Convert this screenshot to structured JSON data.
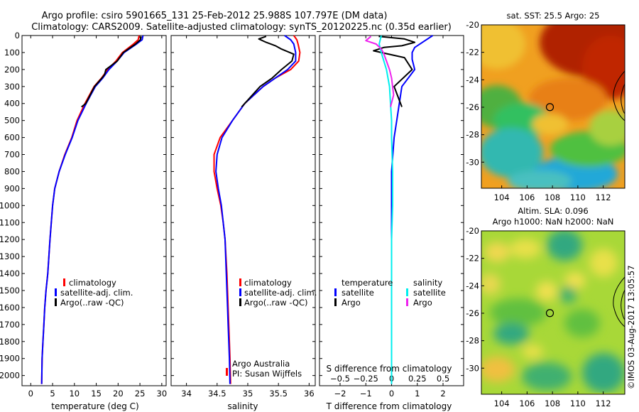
{
  "title_line1": "Argo profile: csiro 5901665_131 25-Feb-2012 25.988S 107.797E (DM data)",
  "title_line2": "Climatology: CARS2009. Satellite-adjusted climatology: synTS_20120225.nc (0.35d earlier)",
  "side_label": "©IMOS 03-Aug-2017 13:05:57",
  "colors": {
    "red": "#ff0000",
    "blue": "#0000ff",
    "black": "#000000",
    "cyan": "#00eeee",
    "magenta": "#ee22ee"
  },
  "chart_data": [
    {
      "type": "line",
      "xlabel": "temperature (deg C)",
      "xlim": [
        -2,
        31
      ],
      "xticks": [
        0,
        5,
        10,
        15,
        20,
        25,
        30
      ],
      "xtick_labels": [
        "0",
        "5",
        "10",
        "15",
        "20",
        "25",
        "30"
      ],
      "ylim": [
        0,
        2060
      ],
      "yticks": [
        0,
        100,
        200,
        300,
        400,
        500,
        600,
        700,
        800,
        900,
        1000,
        1100,
        1200,
        1300,
        1400,
        1500,
        1600,
        1700,
        1800,
        1900,
        2000
      ],
      "ytick_labels": [
        "0",
        "100",
        "200",
        "300",
        "400",
        "500",
        "600",
        "700",
        "800",
        "900",
        "1000",
        "1100",
        "1200",
        "1300",
        "1400",
        "1500",
        "1600",
        "1700",
        "1800",
        "1900",
        "2000"
      ],
      "legend": [
        "climatology",
        "satellite-adj. clim.",
        "Argo(..raw -QC)"
      ],
      "series": [
        {
          "name": "climatology",
          "color": "red",
          "x": [
            24.8,
            24.6,
            23.5,
            21.0,
            19.5,
            17.6,
            16.2,
            14.5,
            12.4,
            10.6,
            9.4,
            7.8,
            6.5,
            5.5,
            5.0,
            4.4,
            3.9,
            3.5,
            3.2,
            3.0,
            2.8,
            2.6,
            2.5
          ],
          "y": [
            0,
            25,
            50,
            100,
            150,
            200,
            250,
            300,
            400,
            500,
            600,
            700,
            800,
            900,
            1000,
            1200,
            1400,
            1500,
            1600,
            1700,
            1800,
            1900,
            2050
          ]
        },
        {
          "name": "satellite-adj. clim.",
          "color": "blue",
          "x": [
            25.7,
            25.5,
            24.2,
            21.4,
            19.8,
            17.9,
            16.5,
            14.8,
            12.7,
            10.8,
            9.5,
            7.9,
            6.5,
            5.5,
            5.0,
            4.4,
            3.9,
            3.5,
            3.2,
            3.0,
            2.8,
            2.6,
            2.5
          ],
          "y": [
            0,
            25,
            50,
            100,
            150,
            200,
            250,
            300,
            400,
            500,
            600,
            700,
            800,
            900,
            1000,
            1200,
            1400,
            1500,
            1600,
            1700,
            1800,
            1900,
            2050
          ]
        },
        {
          "name": "Argo(..raw -QC)",
          "color": "black",
          "x": [
            25.3,
            25.1,
            24.0,
            21.2,
            19.8,
            17.2,
            16.9,
            16.3,
            14.6,
            12.6,
            11.6
          ],
          "y": [
            5,
            25,
            50,
            100,
            150,
            200,
            230,
            250,
            300,
            400,
            420
          ]
        }
      ]
    },
    {
      "type": "line",
      "xlabel": "salinity",
      "xlim": [
        33.75,
        36.1
      ],
      "xticks": [
        34,
        34.5,
        35,
        35.5,
        36
      ],
      "xtick_labels": [
        "34",
        "34.5",
        "35",
        "35.5",
        "36"
      ],
      "ylim": [
        0,
        2060
      ],
      "legend": [
        "climatology",
        "satellite-adj. clim.",
        "Argo(..raw -QC)"
      ],
      "note1": "Argo Australia",
      "note2": "PI: Susan Wijffels",
      "series": [
        {
          "name": "climatology",
          "color": "red",
          "x": [
            35.75,
            35.8,
            35.82,
            35.85,
            35.83,
            35.7,
            35.45,
            35.25,
            34.95,
            34.75,
            34.55,
            34.45,
            34.45,
            34.5,
            34.56,
            34.6,
            34.63,
            34.66,
            34.68,
            34.69,
            34.7,
            34.71,
            34.72
          ],
          "y": [
            0,
            25,
            50,
            100,
            150,
            200,
            250,
            300,
            400,
            500,
            600,
            700,
            800,
            900,
            1000,
            1100,
            1200,
            1400,
            1600,
            1700,
            1800,
            1900,
            2050
          ]
        },
        {
          "name": "satellite-adj. clim.",
          "color": "blue",
          "x": [
            35.6,
            35.7,
            35.75,
            35.78,
            35.78,
            35.65,
            35.45,
            35.25,
            34.95,
            34.75,
            34.58,
            34.5,
            34.48,
            34.52,
            34.57,
            34.6,
            34.63,
            34.65,
            34.67,
            34.68,
            34.69,
            34.7,
            34.71
          ],
          "y": [
            0,
            25,
            50,
            100,
            150,
            200,
            250,
            300,
            400,
            500,
            600,
            700,
            800,
            900,
            1000,
            1100,
            1200,
            1400,
            1600,
            1700,
            1800,
            1900,
            2050
          ]
        },
        {
          "name": "Argo(..raw -QC)",
          "color": "black",
          "x": [
            35.3,
            35.18,
            35.3,
            35.45,
            35.55,
            35.75,
            35.72,
            35.55,
            35.4,
            35.2,
            35.0,
            34.9
          ],
          "y": [
            5,
            20,
            40,
            60,
            80,
            110,
            150,
            200,
            250,
            300,
            380,
            420
          ]
        }
      ]
    },
    {
      "type": "line",
      "xlabel": "T difference from climatology",
      "xlabel_top": "S difference from climatology",
      "xlim": [
        -2.8,
        2.8
      ],
      "xticks": [
        -2,
        -1,
        0,
        1,
        2
      ],
      "xtick_labels": [
        "−2",
        "−1",
        "0",
        "1",
        "2"
      ],
      "top_ticks": [
        -0.5,
        -0.25,
        0,
        0.25,
        0.5
      ],
      "top_tick_labels": [
        "−0.5",
        "−0.25",
        "0",
        "0.25",
        "0.5"
      ],
      "s_scale": 4,
      "ylim": [
        0,
        2060
      ],
      "legend_title_t": "temperature",
      "legend_title_s": "salinity",
      "legend_t": [
        "satellite",
        "Argo"
      ],
      "legend_s": [
        "satellite",
        "Argo"
      ],
      "series": [
        {
          "name": "temperature satellite",
          "color": "blue",
          "x": [
            1.6,
            1.3,
            0.9,
            0.8,
            0.8,
            0.9,
            0.6,
            0.4,
            0.3,
            0.2,
            0.1,
            0.05,
            0,
            0,
            0,
            0,
            0,
            0,
            0
          ],
          "y": [
            0,
            30,
            70,
            100,
            140,
            200,
            260,
            300,
            400,
            500,
            600,
            700,
            800,
            900,
            1000,
            1200,
            1500,
            1800,
            2050
          ]
        },
        {
          "name": "temperature Argo",
          "color": "black",
          "x": [
            -0.5,
            0.5,
            0.9,
            0.4,
            -0.3,
            -0.7,
            0.5,
            0.8,
            0.1,
            0.4
          ],
          "y": [
            5,
            20,
            40,
            60,
            70,
            90,
            130,
            200,
            300,
            420
          ]
        },
        {
          "name": "salinity satellite",
          "color": "cyan",
          "x": [
            -0.1,
            -0.12,
            -0.1,
            -0.05,
            -0.02,
            -0.01,
            0,
            0,
            0.01,
            0.01,
            0,
            0,
            0,
            0,
            0
          ],
          "y": [
            0,
            50,
            100,
            200,
            300,
            400,
            500,
            600,
            800,
            1000,
            1200,
            1400,
            1600,
            1800,
            2050
          ]
        },
        {
          "name": "salinity Argo",
          "color": "magenta",
          "x": [
            -0.2,
            -0.25,
            -0.15,
            -0.1,
            -0.08,
            -0.05,
            -0.02,
            0,
            0.02,
            -0.01
          ],
          "y": [
            5,
            30,
            50,
            80,
            100,
            150,
            200,
            250,
            350,
            420
          ]
        }
      ]
    },
    {
      "type": "heatmap",
      "title": "sat. SST: 25.5 Argo: 25",
      "xticks": [
        "104",
        "106",
        "108",
        "110",
        "112"
      ],
      "yticks": [
        "-20",
        "-22",
        "-24",
        "-26",
        "-28",
        "-30"
      ],
      "xlim": [
        102.4,
        113.7
      ],
      "ylim": [
        -31.9,
        -20.0
      ],
      "marker": {
        "lon": 107.797,
        "lat": -25.988
      }
    },
    {
      "type": "heatmap",
      "title_line1": "Altim. SLA: 0.096",
      "title_line2": "Argo h1000: NaN h2000: NaN",
      "xticks": [
        "104",
        "106",
        "108",
        "110",
        "112"
      ],
      "yticks": [
        "-20",
        "-22",
        "-24",
        "-26",
        "-28",
        "-30"
      ],
      "xlim": [
        102.4,
        113.7
      ],
      "ylim": [
        -31.9,
        -20.0
      ],
      "marker": {
        "lon": 107.797,
        "lat": -25.988
      }
    }
  ]
}
